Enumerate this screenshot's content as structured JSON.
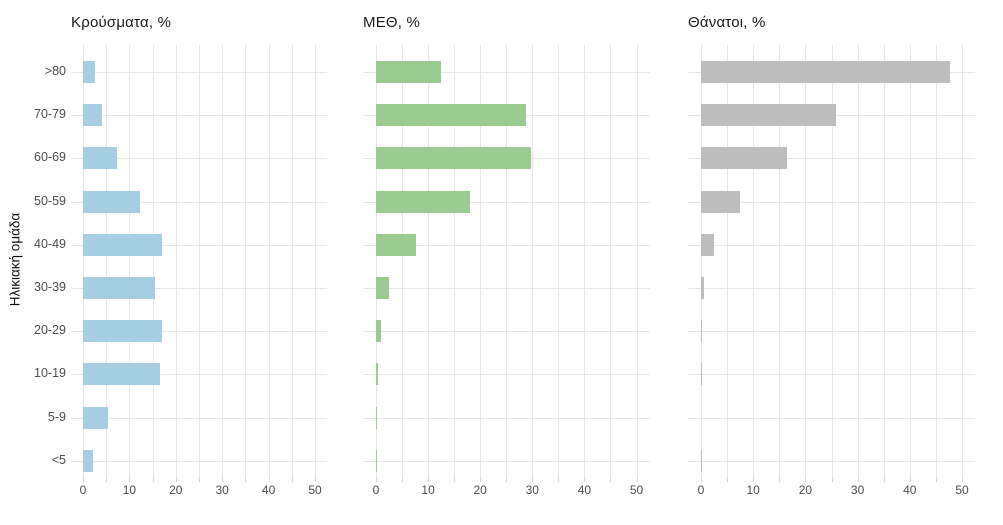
{
  "figure": {
    "background": "#ffffff",
    "y_axis_title": "Ηλικιακή ομάδα",
    "categories": [
      ">80",
      "70-79",
      "60-69",
      "50-59",
      "40-49",
      "30-39",
      "20-29",
      "10-19",
      "5-9",
      "<5"
    ],
    "x_tick_labels": [
      0,
      10,
      20,
      30,
      40,
      50
    ],
    "x_grid_step": 5,
    "colors": {
      "cases_bar": "#a6cee3",
      "icu_bar": "#9bcb90",
      "deaths_bar": "#bebebe",
      "gridline": "#e7e7e7",
      "tick_mark": "#d5d5d5",
      "axis_text": "#4d4d4d",
      "title_text": "#1a1a1a"
    }
  },
  "chart_data": [
    {
      "type": "bar",
      "orientation": "horizontal",
      "name": "cases",
      "title": "Κρούσματα, %",
      "color": "#a6cee3",
      "categories": [
        ">80",
        "70-79",
        "60-69",
        "50-59",
        "40-49",
        "30-39",
        "20-29",
        "10-19",
        "5-9",
        "<5"
      ],
      "values": [
        2.6,
        4.1,
        7.3,
        12.3,
        17.1,
        15.5,
        17.0,
        16.5,
        5.4,
        2.2
      ],
      "xlim": [
        0,
        50
      ],
      "xticks": [
        0,
        10,
        20,
        30,
        40,
        50
      ],
      "grid": true,
      "legend": false
    },
    {
      "type": "bar",
      "orientation": "horizontal",
      "name": "icu",
      "title": "ΜΕΘ, %",
      "color": "#9bcb90",
      "categories": [
        ">80",
        "70-79",
        "60-69",
        "50-59",
        "40-49",
        "30-39",
        "20-29",
        "10-19",
        "5-9",
        "<5"
      ],
      "values": [
        12.5,
        28.8,
        29.7,
        18.0,
        7.7,
        2.5,
        0.9,
        0.3,
        0.1,
        0.2
      ],
      "xlim": [
        0,
        50
      ],
      "xticks": [
        0,
        10,
        20,
        30,
        40,
        50
      ],
      "grid": true,
      "legend": false
    },
    {
      "type": "bar",
      "orientation": "horizontal",
      "name": "deaths",
      "title": "Θάνατοι, %",
      "color": "#bebebe",
      "categories": [
        ">80",
        "70-79",
        "60-69",
        "50-59",
        "40-49",
        "30-39",
        "20-29",
        "10-19",
        "5-9",
        "<5"
      ],
      "values": [
        47.7,
        25.9,
        16.4,
        7.5,
        2.4,
        0.6,
        0.1,
        0.2,
        0.0,
        0.1
      ],
      "xlim": [
        0,
        50
      ],
      "xticks": [
        0,
        10,
        20,
        30,
        40,
        50
      ],
      "grid": true,
      "legend": false
    }
  ]
}
